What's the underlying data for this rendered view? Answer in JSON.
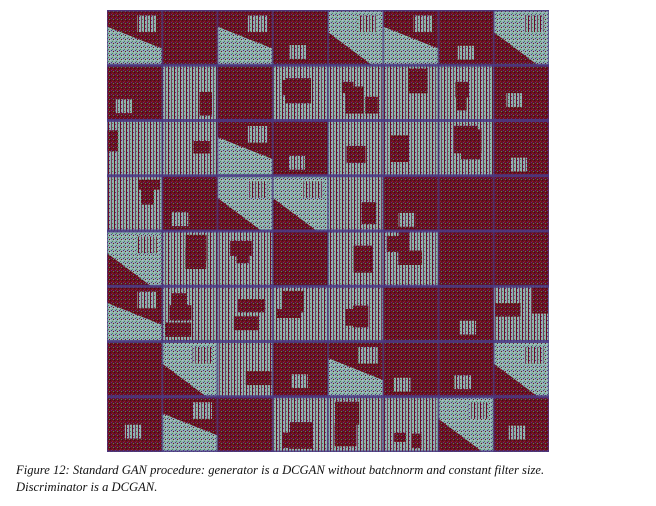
{
  "figure": {
    "caption_line1": "Figure 12: Standard GAN procedure: generator is a DCGAN without batchnorm and constant filter size.",
    "caption_line2": "Discriminator is a DCGAN.",
    "grid_rows": 8,
    "grid_cols": 8,
    "colors": {
      "dark_maroon": "#6a0f1e",
      "light_teal": "#8fb3b0",
      "grid_line": "#4a3a86",
      "noise_purple": "#5a2a8c",
      "noise_green": "#4a8a5a"
    },
    "tile_pattern": [
      [
        "mix",
        "dark",
        "mix",
        "dark",
        "mix",
        "mix",
        "dark",
        "mix"
      ],
      [
        "dark",
        "light",
        "dark",
        "light",
        "light",
        "light",
        "light",
        "dark"
      ],
      [
        "light",
        "light",
        "mix",
        "dark",
        "light",
        "light",
        "light",
        "dark"
      ],
      [
        "light",
        "dark",
        "mix",
        "mix",
        "light",
        "dark",
        "dark",
        "dark"
      ],
      [
        "mix",
        "light",
        "light",
        "dark",
        "light",
        "light",
        "dark",
        "dark"
      ],
      [
        "mix",
        "light",
        "light",
        "light",
        "light",
        "dark",
        "dark",
        "light"
      ],
      [
        "dark",
        "mix",
        "light",
        "dark",
        "mix",
        "dark",
        "dark",
        "mix"
      ],
      [
        "dark",
        "mix",
        "dark",
        "light",
        "light",
        "light",
        "mix",
        "dark"
      ]
    ]
  }
}
